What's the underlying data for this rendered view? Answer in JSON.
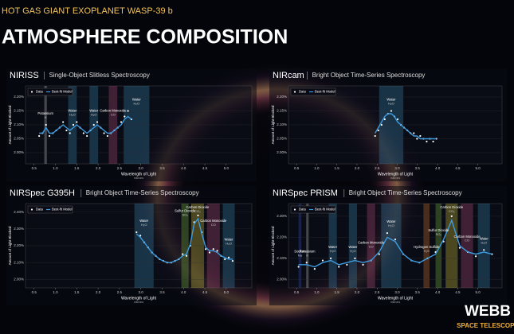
{
  "header": {
    "title": "HOT GAS GIANT EXOPLANET WASP-39 b",
    "subtitle": "ATMOSPHERE COMPOSITION"
  },
  "logo": {
    "name": "WEBB",
    "tagline": "SPACE TELESCOPE"
  },
  "chart_data": [
    {
      "type": "line",
      "title": "NIRISS",
      "subtitle": "Single-Object Slitless Spectroscopy",
      "x_label": "Wavelength of Light",
      "x_unit": "microns",
      "y_label": "Amount of Light Blocked",
      "xlim": [
        0.3,
        5.6
      ],
      "xticks": [
        0.5,
        {
          "value": 1,
          "label": "1.0"
        },
        1.5,
        {
          "value": 2,
          "label": "2.0"
        },
        2.5,
        {
          "value": 3,
          "label": "3.0"
        },
        3.5,
        {
          "value": 4,
          "label": "4.0"
        },
        4.5,
        {
          "value": 5,
          "label": "5.0"
        }
      ],
      "ylim": [
        1.96,
        2.24
      ],
      "yticks": [
        {
          "value": 2.0,
          "label": "2.00%"
        },
        {
          "value": 2.05,
          "label": "2.05%"
        },
        {
          "value": 2.1,
          "label": "2.10%"
        },
        {
          "value": 2.15,
          "label": "2.15%"
        },
        {
          "value": 2.2,
          "label": "2.20%"
        }
      ],
      "x": [
        0.62,
        0.7,
        0.78,
        0.86,
        0.94,
        1.02,
        1.1,
        1.18,
        1.26,
        1.34,
        1.42,
        1.5,
        1.58,
        1.66,
        1.74,
        1.82,
        1.9,
        1.98,
        2.06,
        2.14,
        2.22,
        2.3,
        2.38,
        2.46,
        2.54,
        2.62,
        2.7,
        2.78
      ],
      "series": [
        {
          "name": "Data",
          "mode": "markers",
          "color": "#ffffff",
          "values": [
            2.06,
            2.07,
            2.1,
            2.06,
            2.07,
            2.08,
            2.09,
            2.11,
            2.08,
            2.07,
            2.1,
            2.11,
            2.09,
            2.07,
            2.06,
            2.08,
            2.1,
            2.11,
            2.09,
            2.07,
            2.06,
            2.07,
            2.08,
            2.09,
            2.11,
            2.13,
            2.15,
            2.12
          ]
        },
        {
          "name": "Best-fit Model",
          "mode": "line",
          "color": "#3d9be0",
          "values": [
            2.07,
            2.07,
            2.09,
            2.07,
            2.07,
            2.08,
            2.09,
            2.1,
            2.09,
            2.08,
            2.09,
            2.1,
            2.09,
            2.08,
            2.07,
            2.08,
            2.09,
            2.1,
            2.09,
            2.08,
            2.07,
            2.07,
            2.08,
            2.09,
            2.1,
            2.12,
            2.13,
            2.12
          ]
        }
      ],
      "bands": [
        {
          "label": "Potassium",
          "formula": "K",
          "range": [
            0.74,
            0.8
          ],
          "color": "#cfcfcf"
        },
        {
          "label": "Water",
          "formula": "H₂O",
          "range": [
            1.3,
            1.5
          ],
          "color": "#3f8fb8"
        },
        {
          "label": "Water",
          "formula": "H₂O",
          "range": [
            1.8,
            2.0
          ],
          "color": "#3f8fb8"
        },
        {
          "label": "Carbon Monoxide",
          "formula": "CO",
          "range": [
            2.25,
            2.45
          ],
          "color": "#c0507e"
        },
        {
          "label": "Water",
          "formula": "H₂O",
          "range": [
            2.6,
            3.2
          ],
          "color": "#3f8fb8"
        }
      ]
    },
    {
      "type": "line",
      "title": "NIRcam",
      "subtitle": "Bright Object Time-Series Spectroscopy",
      "x_label": "Wavelength of Light",
      "x_unit": "microns",
      "y_label": "Amount of Light Blocked",
      "xlim": [
        0.3,
        5.6
      ],
      "xticks": [
        0.5,
        {
          "value": 1,
          "label": "1.0"
        },
        1.5,
        {
          "value": 2,
          "label": "2.0"
        },
        2.5,
        {
          "value": 3,
          "label": "3.0"
        },
        3.5,
        {
          "value": 4,
          "label": "4.0"
        },
        4.5,
        {
          "value": 5,
          "label": "5.0"
        }
      ],
      "ylim": [
        1.96,
        2.24
      ],
      "yticks": [
        {
          "value": 2.0,
          "label": "2.00%"
        },
        {
          "value": 2.05,
          "label": "2.05%"
        },
        {
          "value": 2.1,
          "label": "2.10%"
        },
        {
          "value": 2.15,
          "label": "2.15%"
        },
        {
          "value": 2.2,
          "label": "2.20%"
        }
      ],
      "x": [
        2.45,
        2.53,
        2.61,
        2.69,
        2.77,
        2.85,
        2.93,
        3.01,
        3.09,
        3.17,
        3.25,
        3.33,
        3.41,
        3.49,
        3.57,
        3.65,
        3.73,
        3.81,
        3.89,
        3.97
      ],
      "series": [
        {
          "name": "Data",
          "mode": "markers",
          "color": "#ffffff",
          "values": [
            2.06,
            2.08,
            2.1,
            2.12,
            2.14,
            2.15,
            2.13,
            2.12,
            2.1,
            2.09,
            2.08,
            2.07,
            2.07,
            2.05,
            2.06,
            2.05,
            2.04,
            2.05,
            2.04,
            2.05
          ]
        },
        {
          "name": "Best-fit Model",
          "mode": "line",
          "color": "#3d9be0",
          "values": [
            2.07,
            2.09,
            2.11,
            2.13,
            2.14,
            2.14,
            2.13,
            2.11,
            2.1,
            2.09,
            2.08,
            2.07,
            2.06,
            2.06,
            2.05,
            2.05,
            2.05,
            2.05,
            2.05,
            2.05
          ]
        }
      ],
      "bands": [
        {
          "label": "Water",
          "formula": "H₂O",
          "range": [
            2.55,
            3.15
          ],
          "color": "#3f8fb8"
        }
      ]
    },
    {
      "type": "line",
      "title": "NIRSpec G395H",
      "subtitle": "Bright Object Time-Series Spectroscopy",
      "x_label": "Wavelength of Light",
      "x_unit": "microns",
      "y_label": "Amount of Light Blocked",
      "xlim": [
        0.3,
        5.6
      ],
      "xticks": [
        0.5,
        {
          "value": 1,
          "label": "1.0"
        },
        1.5,
        {
          "value": 2,
          "label": "2.0"
        },
        2.5,
        {
          "value": 3,
          "label": "3.0"
        },
        3.5,
        {
          "value": 4,
          "label": "4.0"
        },
        4.5,
        {
          "value": 5,
          "label": "5.0"
        }
      ],
      "ylim": [
        1.95,
        2.45
      ],
      "yticks": [
        {
          "value": 2.0,
          "label": "2.00%"
        },
        {
          "value": 2.1,
          "label": "2.10%"
        },
        {
          "value": 2.2,
          "label": "2.20%"
        },
        {
          "value": 2.3,
          "label": "2.30%"
        },
        {
          "value": 2.4,
          "label": "2.40%"
        }
      ],
      "x": [
        2.9,
        2.99,
        3.08,
        3.17,
        3.26,
        3.35,
        3.44,
        3.53,
        3.62,
        3.71,
        3.8,
        3.89,
        3.98,
        4.07,
        4.16,
        4.25,
        4.34,
        4.43,
        4.52,
        4.61,
        4.7,
        4.79,
        4.88,
        4.97,
        5.06,
        5.15
      ],
      "series": [
        {
          "name": "Data",
          "mode": "markers",
          "color": "#ffffff",
          "values": [
            2.28,
            2.26,
            2.22,
            2.19,
            2.16,
            2.14,
            2.12,
            2.11,
            2.1,
            2.1,
            2.11,
            2.12,
            2.15,
            2.14,
            2.2,
            2.34,
            2.38,
            2.28,
            2.18,
            2.16,
            2.18,
            2.17,
            2.14,
            2.12,
            2.13,
            2.11
          ]
        },
        {
          "name": "Best-fit Model",
          "mode": "line",
          "color": "#3d9be0",
          "values": [
            2.27,
            2.25,
            2.22,
            2.19,
            2.16,
            2.14,
            2.12,
            2.11,
            2.1,
            2.1,
            2.11,
            2.12,
            2.14,
            2.15,
            2.21,
            2.33,
            2.36,
            2.27,
            2.19,
            2.17,
            2.17,
            2.16,
            2.14,
            2.13,
            2.12,
            2.12
          ]
        }
      ],
      "bands": [
        {
          "label": "Water",
          "formula": "H₂O",
          "range": [
            2.85,
            3.3
          ],
          "color": "#3f8fb8"
        },
        {
          "label": "Sulfur Dioxide",
          "formula": "SO₂",
          "range": [
            3.95,
            4.12
          ],
          "color": "#7fbf3f"
        },
        {
          "label": "Carbon Dioxide",
          "formula": "CO₂",
          "range": [
            4.18,
            4.48
          ],
          "color": "#e0d040"
        },
        {
          "label": "Carbon Monoxide",
          "formula": "CO",
          "range": [
            4.55,
            4.85
          ],
          "color": "#c0507e"
        },
        {
          "label": "Water",
          "formula": "H₂O",
          "range": [
            4.92,
            5.2
          ],
          "color": "#3f8fb8"
        }
      ]
    },
    {
      "type": "line",
      "title": "NIRSpec PRISM",
      "subtitle": "Bright Object Time-Series Spectroscopy",
      "x_label": "Wavelength of Light",
      "x_unit": "microns",
      "y_label": "Amount of Light Blocked",
      "xlim": [
        0.3,
        5.6
      ],
      "xticks": [
        0.5,
        {
          "value": 1,
          "label": "1.0"
        },
        1.5,
        {
          "value": 2,
          "label": "2.0"
        },
        2.5,
        {
          "value": 3,
          "label": "3.0"
        },
        3.5,
        {
          "value": 4,
          "label": "4.0"
        },
        4.5,
        {
          "value": 5,
          "label": "5.0"
        }
      ],
      "ylim": [
        1.96,
        2.36
      ],
      "yticks": [
        {
          "value": 2.0,
          "label": "2.00%"
        },
        {
          "value": 2.1,
          "label": "2.10%"
        },
        {
          "value": 2.2,
          "label": "2.20%"
        },
        {
          "value": 2.3,
          "label": "2.30%"
        }
      ],
      "x": [
        0.55,
        0.75,
        0.95,
        1.15,
        1.35,
        1.55,
        1.75,
        1.95,
        2.15,
        2.35,
        2.55,
        2.75,
        2.95,
        3.15,
        3.35,
        3.55,
        3.75,
        3.95,
        4.15,
        4.35,
        4.55,
        4.75,
        4.95,
        5.15,
        5.35
      ],
      "series": [
        {
          "name": "Data",
          "mode": "markers",
          "color": "#ffffff",
          "values": [
            2.06,
            2.08,
            2.05,
            2.09,
            2.1,
            2.06,
            2.07,
            2.1,
            2.07,
            2.09,
            2.12,
            2.22,
            2.19,
            2.12,
            2.09,
            2.08,
            2.1,
            2.13,
            2.18,
            2.3,
            2.15,
            2.13,
            2.11,
            2.14,
            2.12
          ]
        },
        {
          "name": "Best-fit Model",
          "mode": "line",
          "color": "#3d9be0",
          "values": [
            2.07,
            2.07,
            2.06,
            2.08,
            2.09,
            2.07,
            2.08,
            2.09,
            2.08,
            2.09,
            2.13,
            2.2,
            2.18,
            2.12,
            2.09,
            2.08,
            2.1,
            2.12,
            2.19,
            2.28,
            2.16,
            2.13,
            2.12,
            2.13,
            2.12
          ]
        }
      ],
      "bands": [
        {
          "label": "Sodium",
          "formula": "Na",
          "range": [
            0.55,
            0.62
          ],
          "color": "#3050d0"
        },
        {
          "label": "Potassium",
          "formula": "K",
          "range": [
            0.74,
            0.8
          ],
          "color": "#cfcfcf"
        },
        {
          "label": "Water",
          "formula": "H₂O",
          "range": [
            1.3,
            1.5
          ],
          "color": "#3f8fb8"
        },
        {
          "label": "Water",
          "formula": "H₂O",
          "range": [
            1.8,
            2.0
          ],
          "color": "#3f8fb8"
        },
        {
          "label": "Carbon Monoxide",
          "formula": "CO",
          "range": [
            2.25,
            2.45
          ],
          "color": "#c0507e"
        },
        {
          "label": "Water",
          "formula": "H₂O",
          "range": [
            2.6,
            3.1
          ],
          "color": "#3f8fb8"
        },
        {
          "label": "Hydrogen Sulfide",
          "formula": "H₂S",
          "range": [
            3.65,
            3.8
          ],
          "color": "#e07a30"
        },
        {
          "label": "Sulfur Dioxide",
          "formula": "SO₂",
          "range": [
            3.95,
            4.1
          ],
          "color": "#7fbf3f"
        },
        {
          "label": "Carbon Dioxide",
          "formula": "CO₂",
          "range": [
            4.2,
            4.5
          ],
          "color": "#e0d040"
        },
        {
          "label": "Carbon Monoxide",
          "formula": "CO",
          "range": [
            4.58,
            4.88
          ],
          "color": "#c0507e"
        },
        {
          "label": "Water",
          "formula": "H₂O",
          "range": [
            5.0,
            5.3
          ],
          "color": "#3f8fb8"
        }
      ]
    }
  ]
}
